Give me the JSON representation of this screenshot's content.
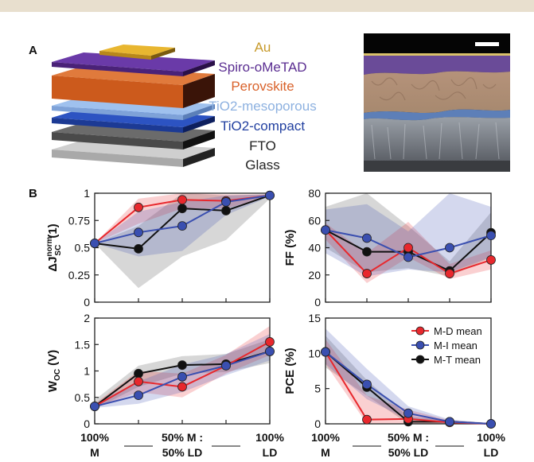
{
  "colors": {
    "top_bar": "#e8dfce",
    "au": "#e6b22a",
    "spiro": "#5a2d91",
    "perovskite": "#d45a1e",
    "tio2_meso": "#7fa7dd",
    "tio2_compact": "#2445a8",
    "fto": "#5a5a5a",
    "glass": "#bdbdbd",
    "md": "#e8282d",
    "mi": "#3a4fb0",
    "mt": "#111111"
  },
  "panel_a": {
    "letter": "A",
    "layers": [
      {
        "label": "Au",
        "color": "#c79a2b"
      },
      {
        "label": "Spiro-oMeTAD",
        "color": "#5a2d91"
      },
      {
        "label": "Perovskite",
        "color": "#d9622b"
      },
      {
        "label": "TiO2-mesoporous",
        "color": "#8db1e0"
      },
      {
        "label": "TiO2-compact",
        "color": "#2240a0"
      },
      {
        "label": "FTO",
        "color": "#222222"
      },
      {
        "label": "Glass",
        "color": "#222222"
      }
    ],
    "sem_icon": "sem-cross-section-image"
  },
  "panel_b": {
    "letter": "B"
  },
  "chart_data": [
    {
      "type": "line",
      "ylabel": "ΔJ",
      "ylabel_sup": "norm",
      "ylabel_sub": "SC",
      "ylabel_suffix": "(1)",
      "ylim": [
        0,
        1
      ],
      "yticks": [
        "0",
        "0.25",
        "0.5",
        "0.75",
        "1"
      ],
      "ytick_values": [
        0,
        0.25,
        0.5,
        0.75,
        1
      ],
      "x": [
        0,
        1,
        2,
        3,
        4
      ],
      "series": [
        {
          "name": "M-D mean",
          "values": [
            0.54,
            0.87,
            0.94,
            0.93,
            0.98
          ],
          "band_low": [
            0.54,
            0.72,
            0.86,
            0.86,
            0.97
          ],
          "band_high": [
            0.54,
            0.95,
            1.0,
            0.99,
            0.99
          ]
        },
        {
          "name": "M-I mean",
          "values": [
            0.54,
            0.64,
            0.7,
            0.92,
            0.98
          ],
          "band_low": [
            0.54,
            0.42,
            0.47,
            0.8,
            0.97
          ],
          "band_high": [
            0.54,
            0.83,
            0.92,
            0.98,
            0.99
          ]
        },
        {
          "name": "M-T mean",
          "values": [
            0.54,
            0.49,
            0.86,
            0.84,
            0.98
          ],
          "band_low": [
            0.54,
            0.13,
            0.42,
            0.57,
            0.95
          ],
          "band_high": [
            0.54,
            0.7,
            1.0,
            0.98,
            0.99
          ]
        }
      ]
    },
    {
      "type": "line",
      "ylabel": "FF (%)",
      "ylim": [
        0,
        80
      ],
      "yticks": [
        "0",
        "20",
        "40",
        "60",
        "80"
      ],
      "ytick_values": [
        0,
        20,
        40,
        60,
        80
      ],
      "x": [
        0,
        1,
        2,
        3,
        4
      ],
      "series": [
        {
          "name": "M-D mean",
          "values": [
            53,
            21,
            40,
            21,
            31
          ],
          "band_low": [
            46,
            14,
            33,
            17,
            24
          ],
          "band_high": [
            58,
            36,
            59,
            28,
            38
          ]
        },
        {
          "name": "M-I mean",
          "values": [
            53,
            47,
            33,
            40,
            49
          ],
          "band_low": [
            36,
            19,
            24,
            22,
            33
          ],
          "band_high": [
            68,
            72,
            52,
            80,
            70
          ]
        },
        {
          "name": "M-T mean",
          "values": [
            53,
            37,
            37,
            23,
            51
          ],
          "band_low": [
            40,
            22,
            25,
            19,
            33
          ],
          "band_high": [
            70,
            80,
            56,
            30,
            66
          ]
        }
      ]
    },
    {
      "type": "line",
      "ylabel": "W",
      "ylabel_sub": "OC",
      "ylabel_suffix": "(V)",
      "ylim": [
        0,
        2
      ],
      "yticks": [
        "0",
        "0.5",
        "1",
        "1.5",
        "2"
      ],
      "ytick_values": [
        0,
        0.5,
        1,
        1.5,
        2
      ],
      "x": [
        0,
        1,
        2,
        3,
        4
      ],
      "series": [
        {
          "name": "M-D mean",
          "values": [
            0.33,
            0.8,
            0.7,
            1.1,
            1.55
          ],
          "band_low": [
            0.3,
            0.6,
            0.5,
            0.95,
            1.3
          ],
          "band_high": [
            0.38,
            1.0,
            0.95,
            1.3,
            1.85
          ]
        },
        {
          "name": "M-I mean",
          "values": [
            0.33,
            0.54,
            0.89,
            1.1,
            1.37
          ],
          "band_low": [
            0.3,
            0.38,
            0.6,
            0.92,
            1.2
          ],
          "band_high": [
            0.38,
            0.8,
            1.12,
            1.32,
            1.7
          ]
        },
        {
          "name": "M-T mean",
          "values": [
            0.33,
            0.95,
            1.11,
            1.13,
            1.37
          ],
          "band_low": [
            0.28,
            0.7,
            0.95,
            0.98,
            1.15
          ],
          "band_high": [
            0.45,
            1.1,
            1.28,
            1.32,
            1.6
          ]
        }
      ]
    },
    {
      "type": "line",
      "ylabel": "PCE (%)",
      "ylim": [
        0,
        15
      ],
      "yticks": [
        "0",
        "5",
        "10",
        "15"
      ],
      "ytick_values": [
        0,
        5,
        10,
        15
      ],
      "legend": {
        "placement": "top-right"
      },
      "x": [
        0,
        1,
        2,
        3,
        4
      ],
      "series": [
        {
          "name": "M-D mean",
          "values": [
            10.2,
            0.6,
            0.7,
            0.2,
            0.0
          ],
          "band_low": [
            8.5,
            0.0,
            0.0,
            0.0,
            0.0
          ],
          "band_high": [
            12.0,
            4.0,
            2.0,
            0.5,
            0.1
          ]
        },
        {
          "name": "M-I mean",
          "values": [
            10.2,
            5.6,
            1.5,
            0.3,
            0.0
          ],
          "band_low": [
            8.5,
            3.5,
            0.6,
            0.0,
            0.0
          ],
          "band_high": [
            13.5,
            7.8,
            2.5,
            0.6,
            0.1
          ]
        },
        {
          "name": "M-T mean",
          "values": [
            10.2,
            5.2,
            0.3,
            0.3,
            0.0
          ],
          "band_low": [
            8.0,
            4.0,
            0.0,
            0.0,
            0.0
          ],
          "band_high": [
            12.5,
            6.2,
            1.0,
            0.5,
            0.1
          ]
        }
      ]
    }
  ],
  "xticks": [
    {
      "line1": "100%",
      "line2": "M"
    },
    {
      "line1": "50% M :",
      "line2": "50% LD"
    },
    {
      "line1": "100%",
      "line2": "LD"
    }
  ]
}
